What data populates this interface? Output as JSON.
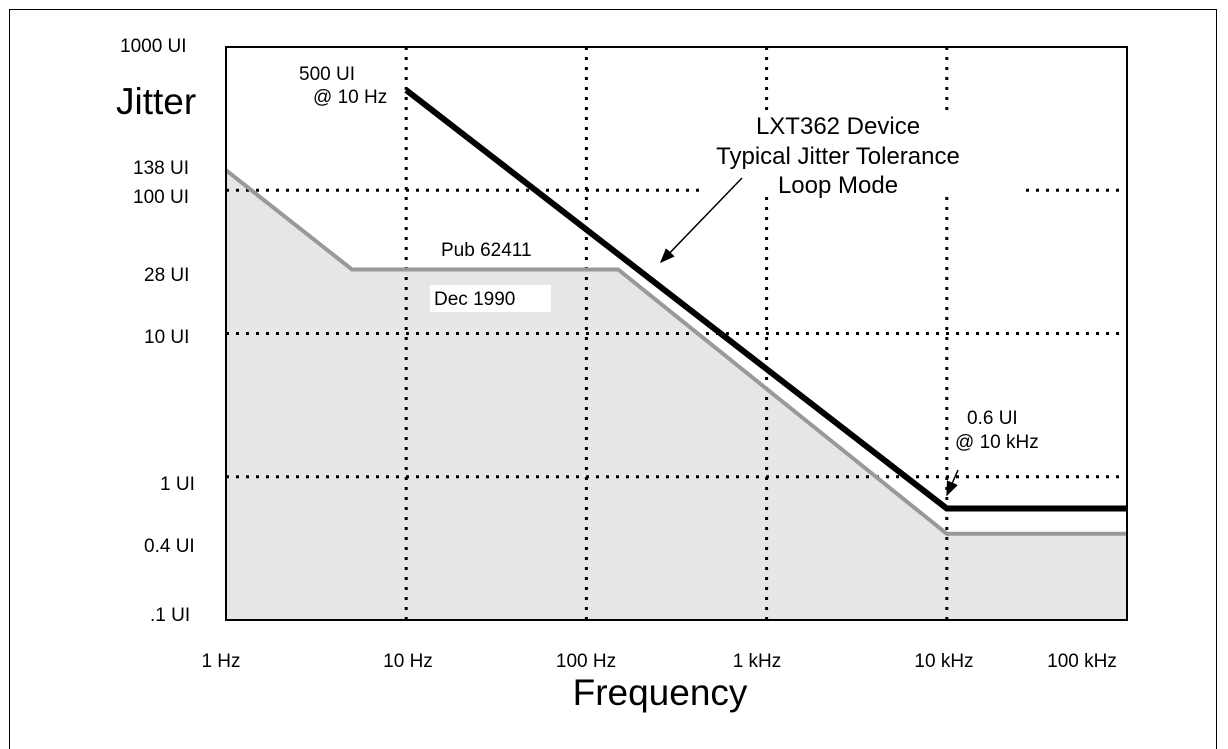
{
  "chart_data": {
    "type": "line",
    "xscale": "log",
    "yscale": "log",
    "xlim": [
      "1 Hz",
      "100 kHz"
    ],
    "ylim": [
      ".1 UI",
      "1000 UI"
    ],
    "grid": "dotted",
    "xlabel": "Frequency",
    "ylabel": "Jitter",
    "x_ticks": [
      "1 Hz",
      "10 Hz",
      "100 Hz",
      "1 kHz",
      "10 kHz",
      "100 kHz"
    ],
    "y_ticks": [
      "1000 UI",
      "138 UI",
      "100 UI",
      "28 UI",
      "10 UI",
      "1 UI",
      "0.4 UI",
      ".1 UI"
    ],
    "series": [
      {
        "name": "LXT362 Device Typical Jitter Tolerance Loop Mode",
        "color": "#000000",
        "points": [
          {
            "x": 10,
            "y": 500
          },
          {
            "x": 10000,
            "y": 0.6
          },
          {
            "x": 15000,
            "y": 0.6
          },
          {
            "x": 100000,
            "y": 0.6
          }
        ]
      },
      {
        "name": "Pub 62411 Dec 1990",
        "color": "#999999",
        "fill": "#e6e6e6",
        "points": [
          {
            "x": 1,
            "y": 138
          },
          {
            "x": 5,
            "y": 28
          },
          {
            "x": 150,
            "y": 28
          },
          {
            "x": 10000,
            "y": 0.4
          },
          {
            "x": 100000,
            "y": 0.4
          }
        ]
      }
    ],
    "annotations": {
      "title_lines": [
        "LXT362 Device",
        "Typical Jitter Tolerance",
        "Loop Mode"
      ],
      "pub_label": "Pub 62411",
      "dec_label": "Dec 1990",
      "top_note_lines": [
        "500 UI",
        "@ 10 Hz"
      ],
      "right_note_lines": [
        "0.6 UI",
        "@ 10 kHz"
      ]
    }
  }
}
